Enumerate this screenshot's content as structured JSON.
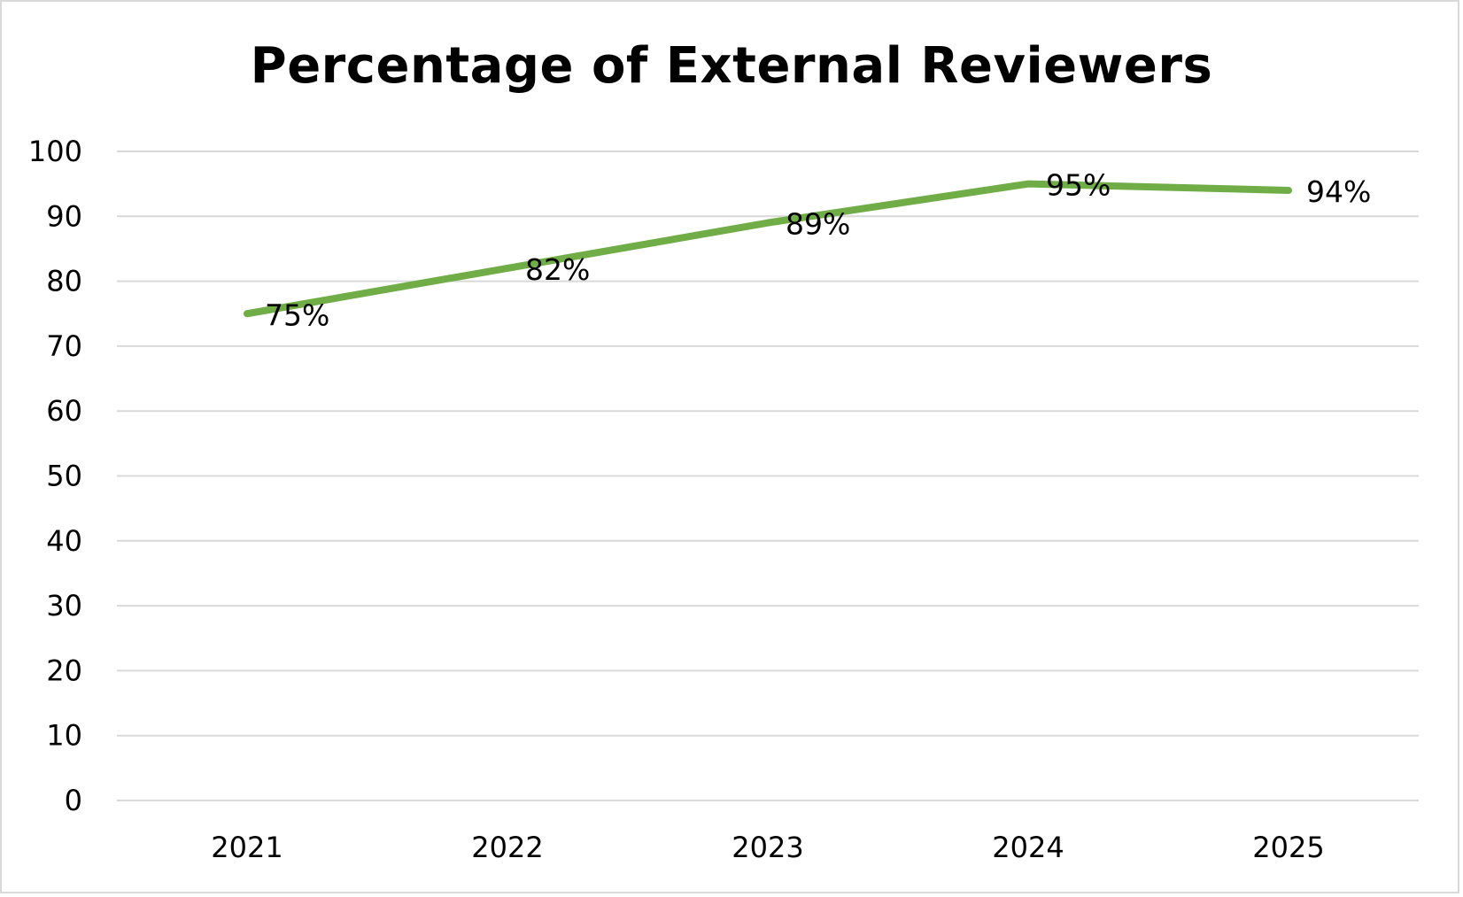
{
  "chart_data": {
    "type": "line",
    "title": "Percentage of External Reviewers",
    "xlabel": "",
    "ylabel": "",
    "categories": [
      "2021",
      "2022",
      "2023",
      "2024",
      "2025"
    ],
    "series": [
      {
        "values": [
          75,
          82,
          89,
          95,
          94
        ],
        "data_labels": [
          "75%",
          "82%",
          "89%",
          "95%",
          "94%"
        ],
        "color": "#70ad47"
      }
    ],
    "ylim": [
      0,
      100
    ],
    "yticks": [
      "0",
      "10",
      "20",
      "30",
      "40",
      "50",
      "60",
      "70",
      "80",
      "90",
      "100"
    ],
    "grid": true,
    "legend": "none",
    "gridline_color": "#d9d9d9"
  }
}
